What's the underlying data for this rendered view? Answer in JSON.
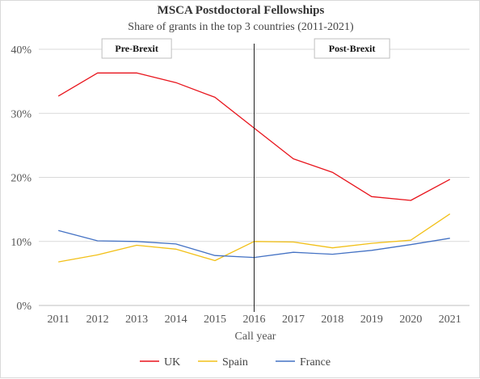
{
  "chart_data": {
    "type": "line",
    "title": "MSCA Postdoctoral Fellowships",
    "subtitle": "Share of grants in the top 3 countries (2011-2021)",
    "xlabel": "Call year",
    "ylabel": "",
    "x": [
      "2011",
      "2012",
      "2013",
      "2014",
      "2015",
      "2016",
      "2017",
      "2018",
      "2019",
      "2020",
      "2021"
    ],
    "ylim": [
      0,
      40
    ],
    "yticks": [
      0,
      10,
      20,
      30,
      40
    ],
    "ytick_labels": [
      "0%",
      "10%",
      "20%",
      "30%",
      "40%"
    ],
    "grid": "horizontal",
    "legend_position": "bottom",
    "series": [
      {
        "name": "UK",
        "color": "#e8141c",
        "values": [
          32.7,
          36.3,
          36.3,
          34.8,
          32.5,
          27.7,
          22.9,
          20.8,
          17.0,
          16.4,
          19.7
        ]
      },
      {
        "name": "Spain",
        "color": "#f2c018",
        "values": [
          6.8,
          7.9,
          9.4,
          8.8,
          7.0,
          10.0,
          9.9,
          9.0,
          9.7,
          10.2,
          14.3
        ]
      },
      {
        "name": "France",
        "color": "#4472c4",
        "values": [
          11.7,
          10.1,
          10.0,
          9.6,
          7.8,
          7.5,
          8.3,
          8.0,
          8.6,
          9.5,
          10.5
        ]
      }
    ],
    "marker_line": {
      "x": "2016",
      "color": "#222222"
    },
    "annotations": [
      {
        "text": "Pre-Brexit",
        "at_x": "2013"
      },
      {
        "text": "Post-Brexit",
        "at_x": "2018.5"
      }
    ]
  }
}
